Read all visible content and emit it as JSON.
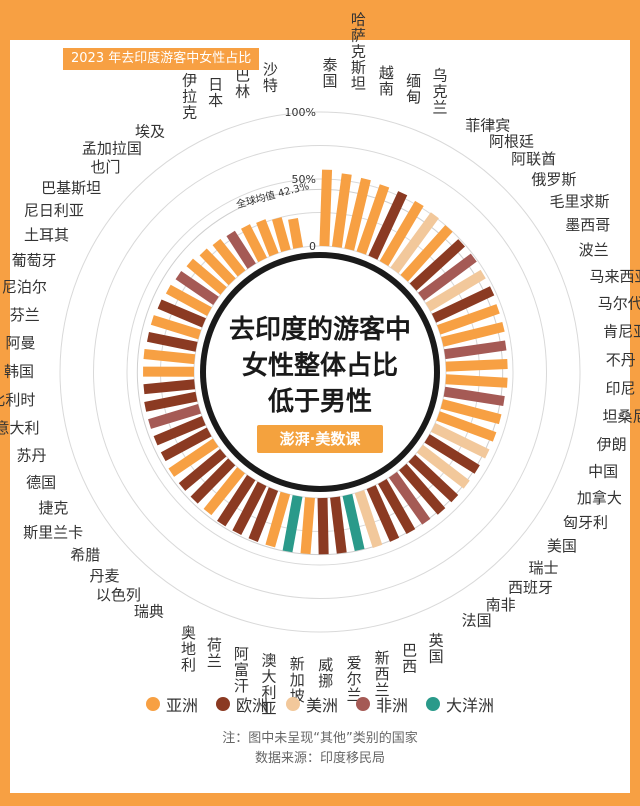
{
  "chart_data": {
    "type": "radial-bar",
    "title": "2023 年去印度游客中女性占比",
    "center_title": [
      "去印度的游客中",
      "女性整体占比",
      "低于男性"
    ],
    "axis_ticks": [
      {
        "value": 0,
        "label": "0"
      },
      {
        "value": 50,
        "label": "50%"
      },
      {
        "value": 100,
        "label": "100%"
      }
    ],
    "reference": {
      "value": 42.3,
      "label": "全球均值 42.3%"
    },
    "regions": [
      {
        "name": "亚洲",
        "color": "#f7a043"
      },
      {
        "name": "欧洲",
        "color": "#8b3a22"
      },
      {
        "name": "美洲",
        "color": "#f2c89b"
      },
      {
        "name": "非洲",
        "color": "#a55a55"
      },
      {
        "name": "大洋洲",
        "color": "#2a9a8a"
      }
    ],
    "series": [
      {
        "country": "泰国",
        "region": "亚洲",
        "value": 57
      },
      {
        "country": "哈萨克斯坦",
        "region": "亚洲",
        "value": 55
      },
      {
        "country": "越南",
        "region": "亚洲",
        "value": 54
      },
      {
        "country": "缅甸",
        "region": "亚洲",
        "value": 53
      },
      {
        "country": "乌克兰",
        "region": "欧洲",
        "value": 53
      },
      {
        "country": "菲律宾",
        "region": "亚洲",
        "value": 52
      },
      {
        "country": "阿根廷",
        "region": "美洲",
        "value": 51
      },
      {
        "country": "阿联酋",
        "region": "亚洲",
        "value": 50
      },
      {
        "country": "俄罗斯",
        "region": "欧洲",
        "value": 49
      },
      {
        "country": "毛里求斯",
        "region": "非洲",
        "value": 49
      },
      {
        "country": "墨西哥",
        "region": "美洲",
        "value": 48
      },
      {
        "country": "波兰",
        "region": "欧洲",
        "value": 48
      },
      {
        "country": "马来西亚",
        "region": "亚洲",
        "value": 47
      },
      {
        "country": "马尔代夫",
        "region": "亚洲",
        "value": 47
      },
      {
        "country": "肯尼亚",
        "region": "非洲",
        "value": 46
      },
      {
        "country": "不丹",
        "region": "亚洲",
        "value": 46
      },
      {
        "country": "印尼",
        "region": "亚洲",
        "value": 46
      },
      {
        "country": "坦桑尼亚",
        "region": "非洲",
        "value": 45
      },
      {
        "country": "伊朗",
        "region": "亚洲",
        "value": 45
      },
      {
        "country": "中国",
        "region": "亚洲",
        "value": 45
      },
      {
        "country": "加拿大",
        "region": "美洲",
        "value": 45
      },
      {
        "country": "匈牙利",
        "region": "欧洲",
        "value": 44
      },
      {
        "country": "美国",
        "region": "美洲",
        "value": 44
      },
      {
        "country": "瑞士",
        "region": "欧洲",
        "value": 44
      },
      {
        "country": "西班牙",
        "region": "欧洲",
        "value": 44
      },
      {
        "country": "南非",
        "region": "非洲",
        "value": 43
      },
      {
        "country": "法国",
        "region": "欧洲",
        "value": 43
      },
      {
        "country": "英国",
        "region": "欧洲",
        "value": 43
      },
      {
        "country": "巴西",
        "region": "美洲",
        "value": 43
      },
      {
        "country": "新西兰",
        "region": "大洋洲",
        "value": 42
      },
      {
        "country": "爱尔兰",
        "region": "欧洲",
        "value": 42
      },
      {
        "country": "威挪",
        "region": "欧洲",
        "value": 42
      },
      {
        "country": "新加坡",
        "region": "亚洲",
        "value": 42
      },
      {
        "country": "澳大利亚",
        "region": "大洋洲",
        "value": 42
      },
      {
        "country": "阿富汗",
        "region": "亚洲",
        "value": 41
      },
      {
        "country": "荷兰",
        "region": "欧洲",
        "value": 41
      },
      {
        "country": "奥地利",
        "region": "欧洲",
        "value": 41
      },
      {
        "country": "瑞典",
        "region": "欧洲",
        "value": 41
      },
      {
        "country": "以色列",
        "region": "亚洲",
        "value": 40
      },
      {
        "country": "丹麦",
        "region": "欧洲",
        "value": 40
      },
      {
        "country": "希腊",
        "region": "欧洲",
        "value": 40
      },
      {
        "country": "斯里兰卡",
        "region": "亚洲",
        "value": 40
      },
      {
        "country": "捷克",
        "region": "欧洲",
        "value": 39
      },
      {
        "country": "德国",
        "region": "欧洲",
        "value": 39
      },
      {
        "country": "苏丹",
        "region": "非洲",
        "value": 39
      },
      {
        "country": "意大利",
        "region": "欧洲",
        "value": 39
      },
      {
        "country": "比利时",
        "region": "欧洲",
        "value": 38
      },
      {
        "country": "韩国",
        "region": "亚洲",
        "value": 38
      },
      {
        "country": "阿曼",
        "region": "亚洲",
        "value": 38
      },
      {
        "country": "芬兰",
        "region": "欧洲",
        "value": 37
      },
      {
        "country": "尼泊尔",
        "region": "亚洲",
        "value": 37
      },
      {
        "country": "葡萄牙",
        "region": "欧洲",
        "value": 36
      },
      {
        "country": "土耳其",
        "region": "亚洲",
        "value": 35
      },
      {
        "country": "尼日利亚",
        "region": "非洲",
        "value": 34
      },
      {
        "country": "巴基斯坦",
        "region": "亚洲",
        "value": 33
      },
      {
        "country": "也门",
        "region": "亚洲",
        "value": 31
      },
      {
        "country": "孟加拉国",
        "region": "亚洲",
        "value": 30
      },
      {
        "country": "埃及",
        "region": "非洲",
        "value": 29
      },
      {
        "country": "伊拉克",
        "region": "亚洲",
        "value": 28
      },
      {
        "country": "日本",
        "region": "亚洲",
        "value": 27
      },
      {
        "country": "巴林",
        "region": "亚洲",
        "value": 25
      },
      {
        "country": "沙特",
        "region": "亚洲",
        "value": 22
      }
    ]
  },
  "brand": "澎湃·美数课",
  "notes": [
    "注：图中未呈现“其他”类别的国家",
    "数据来源：印度移民局"
  ]
}
